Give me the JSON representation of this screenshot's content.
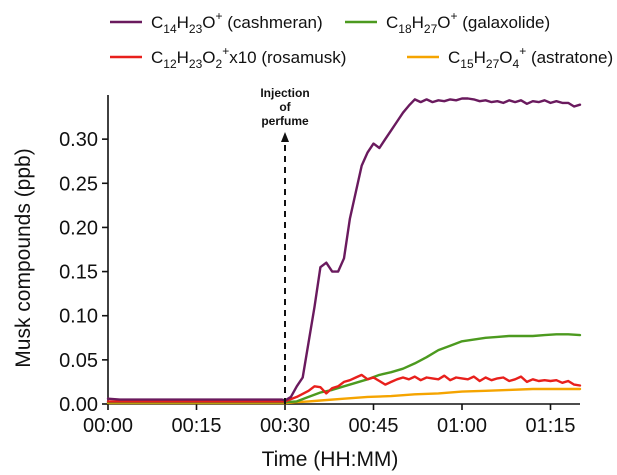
{
  "chart_data": {
    "type": "line",
    "xlabel": "Time (HH:MM)",
    "ylabel": "Musk compounds (ppb)",
    "xlim": [
      0,
      80
    ],
    "ylim": [
      0,
      0.35
    ],
    "grid": false,
    "legend_position": "top",
    "x_ticks": [
      {
        "value": 0,
        "label": "00:00"
      },
      {
        "value": 15,
        "label": "00:15"
      },
      {
        "value": 30,
        "label": "00:30"
      },
      {
        "value": 45,
        "label": "00:45"
      },
      {
        "value": 60,
        "label": "01:00"
      },
      {
        "value": 75,
        "label": "01:15"
      }
    ],
    "y_ticks": [
      {
        "value": 0.0,
        "label": "0.00"
      },
      {
        "value": 0.05,
        "label": "0.05"
      },
      {
        "value": 0.1,
        "label": "0.10"
      },
      {
        "value": 0.15,
        "label": "0.15"
      },
      {
        "value": 0.2,
        "label": "0.20"
      },
      {
        "value": 0.25,
        "label": "0.25"
      },
      {
        "value": 0.3,
        "label": "0.30"
      }
    ],
    "annotation": {
      "lines": [
        "Injection",
        "of",
        "perfume"
      ],
      "x": 30
    },
    "series": [
      {
        "key": "cashmeran",
        "color": "#6a1a5e",
        "legend": {
          "pre": "C",
          "parts": [
            [
              "14",
              "sub"
            ],
            [
              "H",
              ""
            ],
            [
              "23",
              "sub"
            ],
            [
              "O",
              ""
            ],
            [
              "+",
              "sup"
            ]
          ],
          "suffix": " (cashmeran)"
        },
        "x": [
          0,
          2,
          4,
          6,
          8,
          10,
          12,
          14,
          16,
          18,
          20,
          22,
          24,
          26,
          28,
          29.5,
          30,
          31,
          32,
          33,
          34,
          35,
          36,
          37,
          38,
          39,
          40,
          41,
          42,
          43,
          44,
          45,
          46,
          47,
          48,
          49,
          50,
          51,
          52,
          53,
          54,
          55,
          56,
          57,
          58,
          59,
          60,
          61,
          62,
          63,
          64,
          65,
          66,
          67,
          68,
          69,
          70,
          71,
          72,
          73,
          74,
          75,
          76,
          77,
          78,
          79,
          80
        ],
        "y": [
          0.006,
          0.005,
          0.005,
          0.005,
          0.005,
          0.005,
          0.005,
          0.005,
          0.005,
          0.005,
          0.005,
          0.005,
          0.005,
          0.005,
          0.005,
          0.005,
          0.004,
          0.008,
          0.02,
          0.03,
          0.07,
          0.11,
          0.155,
          0.16,
          0.15,
          0.15,
          0.165,
          0.21,
          0.24,
          0.27,
          0.285,
          0.295,
          0.29,
          0.3,
          0.31,
          0.32,
          0.33,
          0.338,
          0.345,
          0.342,
          0.345,
          0.342,
          0.344,
          0.343,
          0.345,
          0.344,
          0.346,
          0.346,
          0.345,
          0.343,
          0.344,
          0.342,
          0.343,
          0.341,
          0.344,
          0.342,
          0.344,
          0.34,
          0.343,
          0.342,
          0.344,
          0.341,
          0.343,
          0.341,
          0.341,
          0.337,
          0.339
        ]
      },
      {
        "key": "galaxolide",
        "color": "#4c9a1f",
        "legend": {
          "pre": "C",
          "parts": [
            [
              "18",
              "sub"
            ],
            [
              "H",
              ""
            ],
            [
              "27",
              "sub"
            ],
            [
              "O",
              ""
            ],
            [
              "+",
              "sup"
            ]
          ],
          "suffix": " (galaxolide)"
        },
        "x": [
          0,
          5,
          10,
          15,
          20,
          25,
          30,
          32,
          34,
          36,
          38,
          40,
          42,
          44,
          46,
          48,
          50,
          52,
          54,
          56,
          58,
          60,
          62,
          64,
          66,
          68,
          70,
          72,
          74,
          76,
          78,
          80
        ],
        "y": [
          0.002,
          0.002,
          0.002,
          0.002,
          0.002,
          0.002,
          0.002,
          0.003,
          0.008,
          0.013,
          0.016,
          0.02,
          0.024,
          0.028,
          0.033,
          0.036,
          0.04,
          0.046,
          0.053,
          0.061,
          0.066,
          0.071,
          0.073,
          0.075,
          0.076,
          0.077,
          0.077,
          0.077,
          0.078,
          0.079,
          0.079,
          0.078
        ]
      },
      {
        "key": "rosamusk",
        "color": "#e8201c",
        "legend": {
          "pre": "C",
          "parts": [
            [
              "12",
              "sub"
            ],
            [
              "H",
              ""
            ],
            [
              "23",
              "sub"
            ],
            [
              "O",
              ""
            ],
            [
              "2",
              "sub"
            ],
            [
              "+",
              "sup"
            ]
          ],
          "suffix": "x10 (rosamusk)"
        },
        "x": [
          0,
          5,
          10,
          15,
          20,
          25,
          30,
          32,
          34,
          35,
          36,
          37,
          38,
          39,
          40,
          41,
          42,
          43,
          44,
          45,
          46,
          47,
          48,
          49,
          50,
          51,
          52,
          53,
          54,
          55,
          56,
          57,
          58,
          59,
          60,
          61,
          62,
          63,
          64,
          65,
          66,
          67,
          68,
          69,
          70,
          71,
          72,
          73,
          74,
          75,
          76,
          77,
          78,
          79,
          80
        ],
        "y": [
          0.003,
          0.003,
          0.003,
          0.003,
          0.003,
          0.003,
          0.003,
          0.008,
          0.015,
          0.02,
          0.019,
          0.012,
          0.018,
          0.02,
          0.025,
          0.027,
          0.03,
          0.033,
          0.028,
          0.03,
          0.026,
          0.022,
          0.025,
          0.028,
          0.03,
          0.028,
          0.031,
          0.027,
          0.03,
          0.029,
          0.028,
          0.032,
          0.027,
          0.03,
          0.029,
          0.028,
          0.031,
          0.026,
          0.03,
          0.027,
          0.029,
          0.03,
          0.026,
          0.028,
          0.031,
          0.025,
          0.028,
          0.026,
          0.027,
          0.026,
          0.027,
          0.024,
          0.026,
          0.022,
          0.021
        ]
      },
      {
        "key": "astratone",
        "color": "#f5a400",
        "legend": {
          "pre": "C",
          "parts": [
            [
              "15",
              "sub"
            ],
            [
              "H",
              ""
            ],
            [
              "27",
              "sub"
            ],
            [
              "O",
              ""
            ],
            [
              "4",
              "sub"
            ],
            [
              "+",
              "sup"
            ]
          ],
          "suffix": " (astratone)"
        },
        "x": [
          0,
          5,
          10,
          15,
          20,
          25,
          30,
          32,
          34,
          36,
          40,
          44,
          48,
          52,
          56,
          60,
          64,
          68,
          72,
          76,
          80
        ],
        "y": [
          0.001,
          0.001,
          0.001,
          0.001,
          0.001,
          0.001,
          0.001,
          0.002,
          0.003,
          0.004,
          0.006,
          0.008,
          0.009,
          0.011,
          0.012,
          0.014,
          0.015,
          0.016,
          0.017,
          0.017,
          0.017
        ]
      }
    ]
  }
}
